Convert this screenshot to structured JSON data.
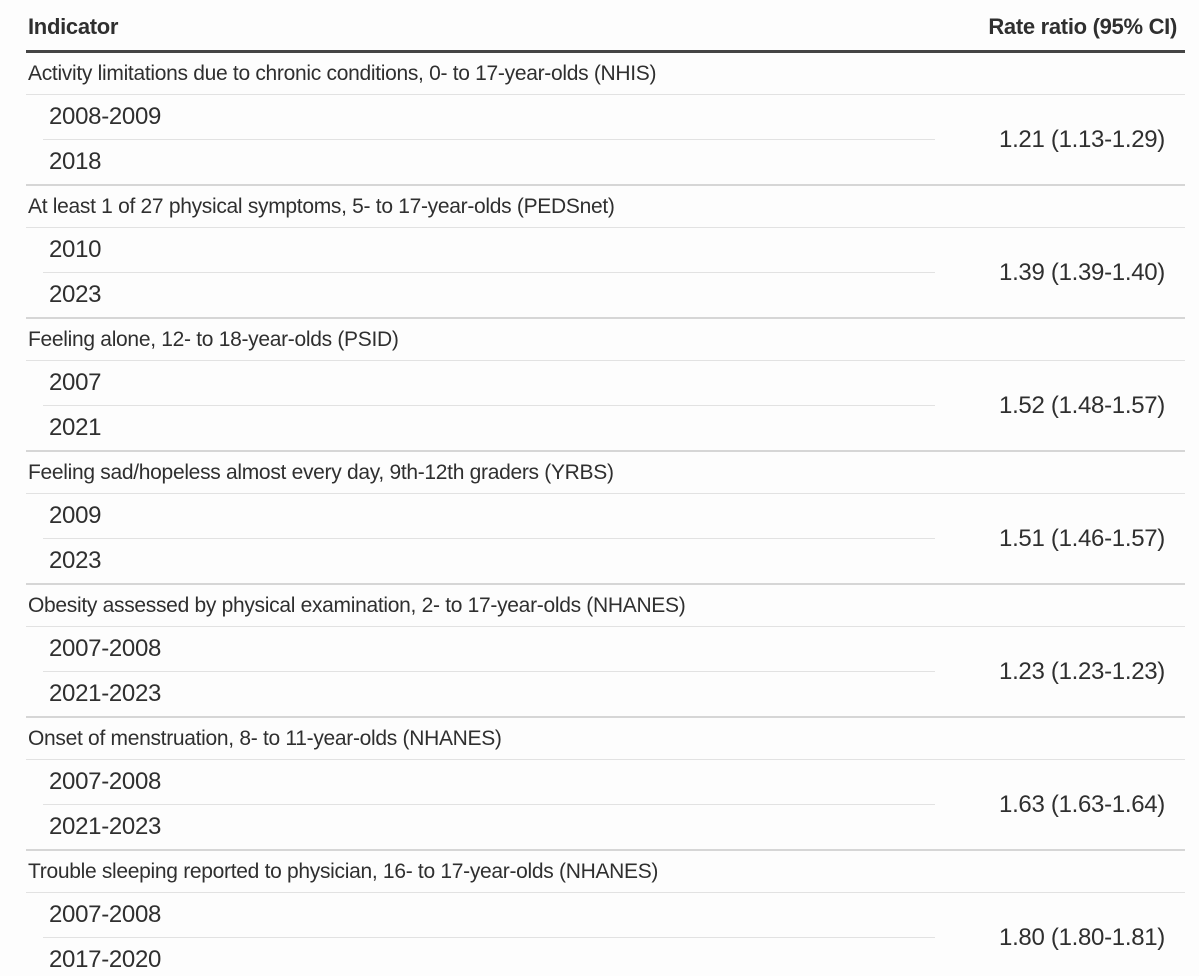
{
  "table": {
    "header": {
      "indicator": "Indicator",
      "rate_ratio": "Rate ratio (95% CI)"
    },
    "groups": [
      {
        "indicator": "Activity limitations due to chronic conditions, 0- to 17-year-olds (NHIS)",
        "period_start": "2008-2009",
        "period_end": "2018",
        "rate_ratio": "1.21 (1.13-1.29)"
      },
      {
        "indicator": "At least 1 of 27 physical symptoms, 5- to 17-year-olds (PEDSnet)",
        "period_start": "2010",
        "period_end": "2023",
        "rate_ratio": "1.39 (1.39-1.40)"
      },
      {
        "indicator": "Feeling alone, 12- to 18-year-olds (PSID)",
        "period_start": "2007",
        "period_end": "2021",
        "rate_ratio": "1.52 (1.48-1.57)"
      },
      {
        "indicator": "Feeling sad/hopeless almost every day, 9th-12th graders (YRBS)",
        "period_start": "2009",
        "period_end": "2023",
        "rate_ratio": "1.51 (1.46-1.57)"
      },
      {
        "indicator": "Obesity assessed by physical examination, 2- to 17-year-olds (NHANES)",
        "period_start": "2007-2008",
        "period_end": "2021-2023",
        "rate_ratio": "1.23 (1.23-1.23)"
      },
      {
        "indicator": "Onset of menstruation, 8- to 11-year-olds (NHANES)",
        "period_start": "2007-2008",
        "period_end": "2021-2023",
        "rate_ratio": "1.63 (1.63-1.64)"
      },
      {
        "indicator": "Trouble sleeping reported to physician, 16- to 17-year-olds (NHANES)",
        "period_start": "2007-2008",
        "period_end": "2017-2020",
        "rate_ratio": "1.80 (1.80-1.81)"
      }
    ],
    "colors": {
      "text": "#2f2f2f",
      "header_rule": "#454545",
      "row_rule": "#e2e2e2",
      "group_rule": "#d6d6d6",
      "background": "#fdfdfd"
    }
  }
}
